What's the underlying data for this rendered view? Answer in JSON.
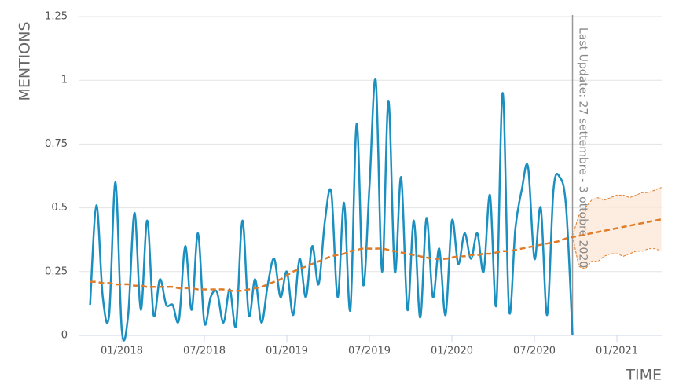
{
  "chart_data": {
    "type": "line",
    "y_label": "MENTIONS",
    "x_label": "TIME",
    "annotation": "Last Update: 27 settembre - 3 ottobre 2020",
    "ylim": [
      0,
      1.25
    ],
    "yticks": [
      0,
      0.25,
      0.5,
      0.75,
      1,
      1.25
    ],
    "grid": true,
    "categories": [
      null,
      null,
      null,
      null,
      null,
      "01/2018",
      null,
      null,
      null,
      null,
      null,
      null,
      null,
      null,
      null,
      null,
      null,
      null,
      "07/2018",
      null,
      null,
      null,
      null,
      null,
      null,
      null,
      null,
      null,
      null,
      null,
      null,
      "01/2019",
      null,
      null,
      null,
      null,
      null,
      null,
      null,
      null,
      null,
      null,
      null,
      null,
      "07/2019",
      null,
      null,
      null,
      null,
      null,
      null,
      null,
      null,
      null,
      null,
      null,
      null,
      "01/2020",
      null,
      null,
      null,
      null,
      null,
      null,
      null,
      null,
      null,
      null,
      null,
      null,
      "07/2020",
      null,
      null,
      null,
      null,
      null,
      null,
      null,
      null,
      null,
      null,
      null,
      null,
      "01/2021",
      null,
      null,
      null,
      null,
      null,
      null,
      null
    ],
    "series": [
      {
        "color": "#1a8fc0",
        "line_style": "solid",
        "values": [
          0.12,
          0.51,
          0.15,
          0.08,
          0.6,
          0.02,
          0.08,
          0.48,
          0.1,
          0.45,
          0.08,
          0.22,
          0.12,
          0.12,
          0.06,
          0.35,
          0.1,
          0.4,
          0.05,
          0.15,
          0.17,
          0.05,
          0.18,
          0.04,
          0.45,
          0.08,
          0.22,
          0.05,
          0.2,
          0.3,
          0.15,
          0.25,
          0.08,
          0.3,
          0.15,
          0.35,
          0.2,
          0.45,
          0.56,
          0.15,
          0.52,
          0.1,
          0.83,
          0.2,
          0.58,
          1,
          0.25,
          0.92,
          0.25,
          0.62,
          0.1,
          0.45,
          0.07,
          0.46,
          0.15,
          0.34,
          0.08,
          0.45,
          0.28,
          0.4,
          0.3,
          0.4,
          0.25,
          0.55,
          0.12,
          0.95,
          0.1,
          0.42,
          0.57,
          0.66,
          0.3,
          0.5,
          0.08,
          0.57,
          0.62,
          0.5,
          0,
          null,
          null,
          null,
          null,
          null,
          null,
          null,
          null,
          null,
          null,
          null,
          null,
          null,
          null
        ]
      },
      {
        "color": "#e07b28",
        "line_style": "dashed",
        "values": [
          0.21,
          0.21,
          0.205,
          0.205,
          0.2,
          0.2,
          0.2,
          0.195,
          0.195,
          0.19,
          0.19,
          0.19,
          0.19,
          0.19,
          0.185,
          0.185,
          0.185,
          0.18,
          0.18,
          0.18,
          0.18,
          0.18,
          0.175,
          0.175,
          0.175,
          0.18,
          0.185,
          0.19,
          0.2,
          0.21,
          0.22,
          0.235,
          0.25,
          0.26,
          0.27,
          0.28,
          0.29,
          0.3,
          0.31,
          0.315,
          0.32,
          0.33,
          0.335,
          0.34,
          0.34,
          0.34,
          0.34,
          0.335,
          0.33,
          0.325,
          0.32,
          0.315,
          0.31,
          0.305,
          0.3,
          0.3,
          0.3,
          0.305,
          0.31,
          0.31,
          0.315,
          0.315,
          0.32,
          0.32,
          0.325,
          0.33,
          0.33,
          0.335,
          0.34,
          0.345,
          0.35,
          0.355,
          0.36,
          0.365,
          0.37,
          0.38,
          0.385,
          0.39,
          0.395,
          0.4,
          0.405,
          0.41,
          0.415,
          0.42,
          0.425,
          0.43,
          0.435,
          0.44,
          0.445,
          0.45,
          0.455
        ]
      }
    ],
    "forecast_band": {
      "color": "#fde8d8",
      "edge_color": "#e07b28",
      "upper": [
        null,
        null,
        null,
        null,
        null,
        null,
        null,
        null,
        null,
        null,
        null,
        null,
        null,
        null,
        null,
        null,
        null,
        null,
        null,
        null,
        null,
        null,
        null,
        null,
        null,
        null,
        null,
        null,
        null,
        null,
        null,
        null,
        null,
        null,
        null,
        null,
        null,
        null,
        null,
        null,
        null,
        null,
        null,
        null,
        null,
        null,
        null,
        null,
        null,
        null,
        null,
        null,
        null,
        null,
        null,
        null,
        null,
        null,
        null,
        null,
        null,
        null,
        null,
        null,
        null,
        null,
        null,
        null,
        null,
        null,
        null,
        null,
        null,
        null,
        null,
        null,
        0.39,
        0.47,
        0.5,
        0.53,
        0.54,
        0.53,
        0.54,
        0.55,
        0.55,
        0.54,
        0.55,
        0.56,
        0.56,
        0.57,
        0.58
      ],
      "lower": [
        null,
        null,
        null,
        null,
        null,
        null,
        null,
        null,
        null,
        null,
        null,
        null,
        null,
        null,
        null,
        null,
        null,
        null,
        null,
        null,
        null,
        null,
        null,
        null,
        null,
        null,
        null,
        null,
        null,
        null,
        null,
        null,
        null,
        null,
        null,
        null,
        null,
        null,
        null,
        null,
        null,
        null,
        null,
        null,
        null,
        null,
        null,
        null,
        null,
        null,
        null,
        null,
        null,
        null,
        null,
        null,
        null,
        null,
        null,
        null,
        null,
        null,
        null,
        null,
        null,
        null,
        null,
        null,
        null,
        null,
        null,
        null,
        null,
        null,
        null,
        null,
        0.39,
        0.27,
        0.26,
        0.29,
        0.29,
        0.31,
        0.32,
        0.32,
        0.31,
        0.32,
        0.33,
        0.33,
        0.34,
        0.34,
        0.33
      ]
    }
  }
}
